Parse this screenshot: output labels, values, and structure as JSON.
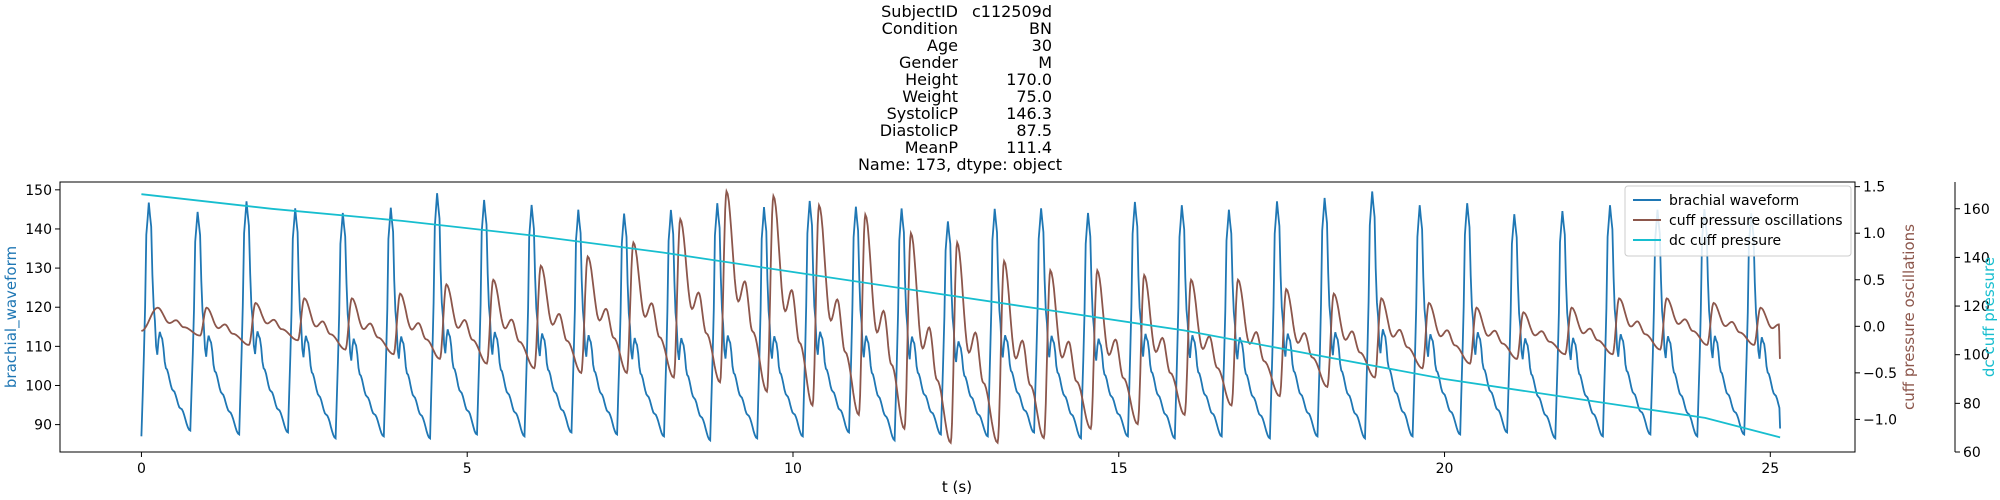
{
  "title": {
    "rows": [
      {
        "key": "SubjectID",
        "value": "c112509d"
      },
      {
        "key": "Condition",
        "value": "BN"
      },
      {
        "key": "Age",
        "value": "30"
      },
      {
        "key": "Gender",
        "value": "M"
      },
      {
        "key": "Height",
        "value": "170.0"
      },
      {
        "key": "Weight",
        "value": "75.0"
      },
      {
        "key": "SystolicP",
        "value": "146.3"
      },
      {
        "key": "DiastolicP",
        "value": "87.5"
      },
      {
        "key": "MeanP",
        "value": "111.4"
      }
    ],
    "footer": "Name: 173, dtype: object"
  },
  "chart_data": {
    "type": "line",
    "xlabel": "t (s)",
    "xlim": [
      -1.25,
      26.3
    ],
    "xticks": [
      0,
      5,
      10,
      15,
      20,
      25
    ],
    "grid": false,
    "legend_position": "top-right",
    "axes": {
      "left": {
        "label": "brachial_waveform",
        "color": "#1f77b4",
        "ylim": [
          83,
          152
        ],
        "ticks": [
          90,
          100,
          110,
          120,
          130,
          140,
          150
        ]
      },
      "right1": {
        "label": "cuff pressure oscillations",
        "color": "#8c564b",
        "ylim": [
          -1.35,
          1.55
        ],
        "ticks": [
          -1.0,
          -0.5,
          0.0,
          0.5,
          1.0,
          1.5
        ]
      },
      "right2": {
        "label": "dc cuff pressure",
        "color": "#17becf",
        "ylim": [
          60,
          171
        ],
        "ticks": [
          60,
          80,
          100,
          120,
          140,
          160
        ]
      }
    },
    "series": [
      {
        "name": "brachial waveform",
        "axis": "left",
        "color": "#1f77b4",
        "t_range": [
          0,
          25.15
        ],
        "beat_onsets": [
          0.0,
          0.75,
          1.5,
          2.25,
          2.98,
          3.72,
          4.43,
          5.15,
          5.88,
          6.6,
          7.3,
          8.02,
          8.73,
          9.45,
          10.15,
          10.86,
          11.56,
          12.27,
          12.99,
          13.7,
          14.42,
          15.14,
          15.86,
          16.58,
          17.32,
          18.05,
          18.78,
          19.51,
          20.24,
          20.96,
          21.7,
          22.43,
          23.16,
          23.88,
          24.6
        ],
        "systolic_peaks": [
          146.5,
          144.5,
          147,
          145.5,
          144,
          145.5,
          149,
          147.5,
          146,
          145,
          144,
          145,
          146.5,
          145.5,
          147,
          146,
          145,
          142,
          145,
          145.5,
          144,
          147,
          146,
          145,
          147,
          148,
          149.5,
          146,
          146.5,
          144,
          144.5,
          146,
          145,
          145,
          144
        ],
        "diastolic_troughs": [
          87,
          88.5,
          87.5,
          88,
          86.5,
          87,
          86.5,
          87.5,
          87,
          88,
          87.5,
          87,
          86,
          86.5,
          87,
          88,
          86,
          87.5,
          87,
          88,
          86.5,
          87,
          86.5,
          87,
          86.5,
          87,
          86.5,
          87,
          87.5,
          88,
          86.5,
          87,
          87.5,
          87,
          87.5
        ],
        "last_value": 89
      },
      {
        "name": "cuff pressure oscillations",
        "axis": "right1",
        "color": "#8c564b",
        "t_range": [
          0,
          25.15
        ],
        "beat_peaks": [
          0.2,
          0.2,
          0.25,
          0.3,
          0.3,
          0.35,
          0.45,
          0.5,
          0.65,
          0.75,
          0.9,
          1.15,
          1.45,
          1.4,
          1.3,
          1.2,
          1.0,
          0.9,
          0.7,
          0.6,
          0.6,
          0.55,
          0.5,
          0.5,
          0.4,
          0.35,
          0.3,
          0.25,
          0.2,
          0.15,
          0.2,
          0.3,
          0.3,
          0.25,
          0.2
        ],
        "beat_troughs": [
          -0.1,
          -0.2,
          -0.15,
          -0.25,
          -0.3,
          -0.35,
          -0.4,
          -0.45,
          -0.5,
          -0.5,
          -0.55,
          -0.6,
          -0.7,
          -0.85,
          -0.95,
          -1.1,
          -1.25,
          -1.25,
          -1.2,
          -1.1,
          -1.05,
          -0.95,
          -0.85,
          -0.75,
          -0.65,
          -0.55,
          -0.45,
          -0.4,
          -0.35,
          -0.3,
          -0.3,
          -0.25,
          -0.2,
          -0.2,
          -0.2
        ],
        "start_value": -0.05,
        "end_value": -0.35
      },
      {
        "name": "dc cuff pressure",
        "axis": "right2",
        "color": "#17becf",
        "x": [
          0,
          2,
          4,
          6,
          8,
          10,
          12,
          14,
          16,
          18,
          20,
          22,
          24,
          25.15
        ],
        "y": [
          166,
          160,
          155,
          149,
          142,
          134,
          126,
          118,
          110,
          100,
          90,
          82,
          74,
          66
        ]
      }
    ]
  }
}
